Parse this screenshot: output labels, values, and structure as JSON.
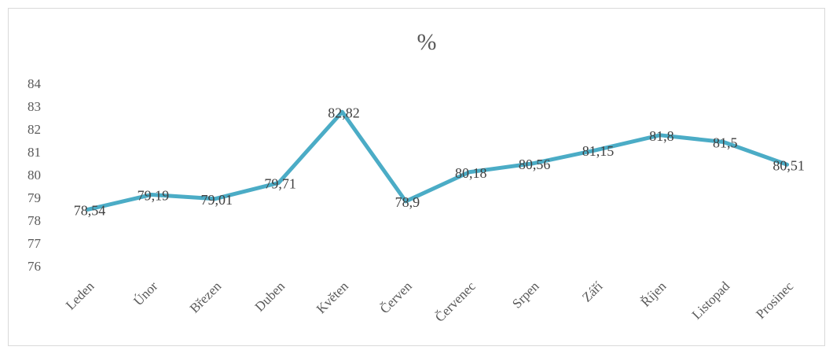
{
  "chart_data": {
    "type": "line",
    "title": "%",
    "categories": [
      "Leden",
      "Únor",
      "Březen",
      "Duben",
      "Květen",
      "Červen",
      "Červenec",
      "Srpen",
      "Září",
      "Říjen",
      "Listopad",
      "Prosinec"
    ],
    "series": [
      {
        "name": "%",
        "color": "#4bacc6",
        "values": [
          78.54,
          79.19,
          79.01,
          79.71,
          82.82,
          78.9,
          80.18,
          80.56,
          81.15,
          81.8,
          81.5,
          80.51
        ],
        "value_labels": [
          "78,54",
          "79,19",
          "79,01",
          "79,71",
          "82,82",
          "78,9",
          "80,18",
          "80,56",
          "81,15",
          "81,8",
          "81,5",
          "80,51"
        ]
      }
    ],
    "ylim": [
      76,
      84
    ],
    "yticks": [
      76,
      77,
      78,
      79,
      80,
      81,
      82,
      83,
      84
    ],
    "grid": false
  }
}
